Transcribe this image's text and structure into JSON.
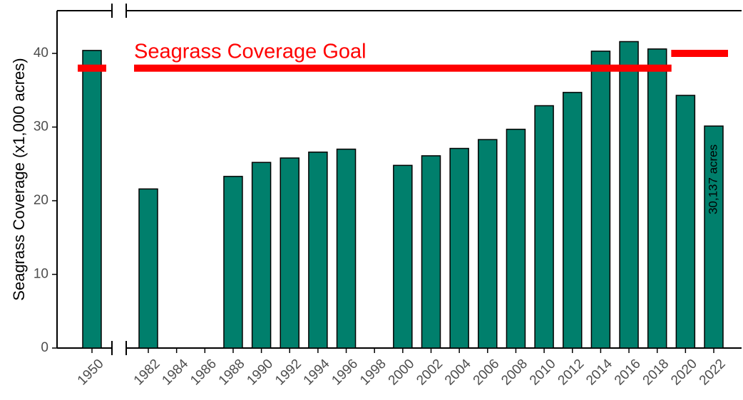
{
  "chart_data": {
    "type": "bar",
    "y_label": "Seagrass Coverage (x1,000 acres)",
    "categories": [
      "1950",
      "1982",
      "1984",
      "1986",
      "1988",
      "1990",
      "1992",
      "1994",
      "1996",
      "1998",
      "2000",
      "2002",
      "2004",
      "2006",
      "2008",
      "2010",
      "2012",
      "2014",
      "2016",
      "2018",
      "2020",
      "2022"
    ],
    "values": [
      40.4,
      21.6,
      null,
      null,
      23.3,
      25.2,
      25.8,
      26.6,
      27.0,
      null,
      24.8,
      26.1,
      27.1,
      28.3,
      29.7,
      32.9,
      34.7,
      40.3,
      41.6,
      40.6,
      34.3,
      30.137
    ],
    "color": "#007f6c",
    "ylim": [
      0,
      45.8
    ],
    "yticks": [
      0,
      10,
      20,
      30,
      40
    ],
    "goal_label": "Seagrass Coverage Goal",
    "goal_color": "#ff0000",
    "goal_lines": [
      {
        "value": 38,
        "from": "1950",
        "to": "1950"
      },
      {
        "value": 38,
        "from": "1982",
        "to": "2018"
      },
      {
        "value": 40,
        "from": "2020",
        "to": "2022"
      }
    ],
    "annotation": "30,137 acres"
  }
}
